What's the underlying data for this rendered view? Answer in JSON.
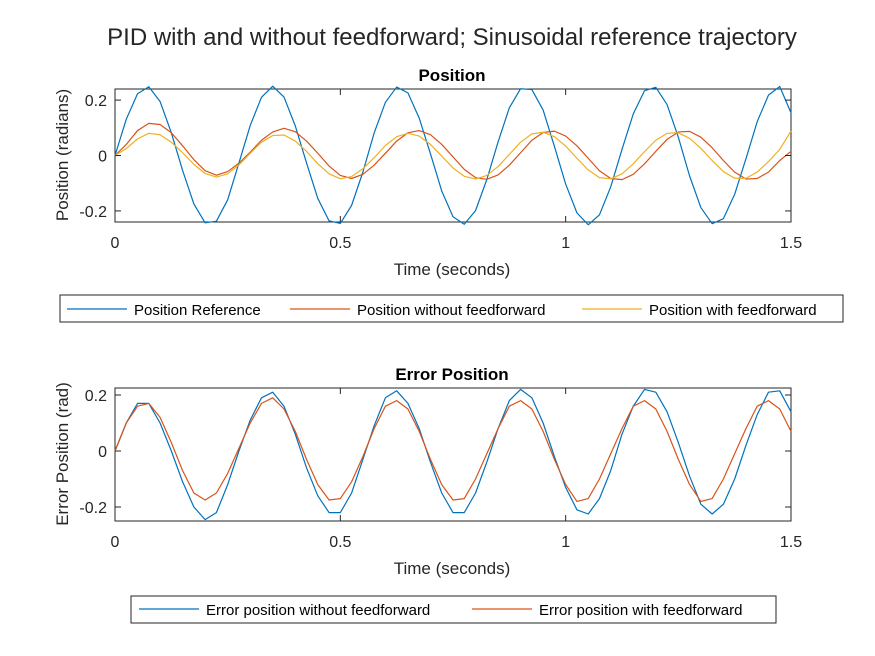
{
  "figure": {
    "title": "PID with and without feedforward; Sinusoidal reference trajectory"
  },
  "chart_data": [
    {
      "type": "line",
      "title": "Position",
      "xlabel": "Time (seconds)",
      "ylabel": "Position (radians)",
      "xlim": [
        0,
        1.5
      ],
      "ylim": [
        -0.24,
        0.24
      ],
      "xticks": [
        0,
        0.5,
        1,
        1.5
      ],
      "xtick_labels": [
        "0",
        "0.5",
        "1",
        "1.5"
      ],
      "yticks": [
        -0.2,
        0,
        0.2
      ],
      "ytick_labels": [
        "-0.2",
        "0",
        "0.2"
      ],
      "grid": false,
      "legend_position": "bottom-outside",
      "x": [
        0,
        0.025,
        0.05,
        0.075,
        0.1,
        0.125,
        0.15,
        0.175,
        0.2,
        0.225,
        0.25,
        0.275,
        0.3,
        0.325,
        0.35,
        0.375,
        0.4,
        0.425,
        0.45,
        0.475,
        0.5,
        0.525,
        0.55,
        0.575,
        0.6,
        0.625,
        0.65,
        0.675,
        0.7,
        0.725,
        0.75,
        0.775,
        0.8,
        0.825,
        0.85,
        0.875,
        0.9,
        0.925,
        0.95,
        0.975,
        1.0,
        1.025,
        1.05,
        1.075,
        1.1,
        1.125,
        1.15,
        1.175,
        1.2,
        1.225,
        1.25,
        1.275,
        1.3,
        1.325,
        1.35,
        1.375,
        1.4,
        1.425,
        1.45,
        1.475,
        1.5
      ],
      "series": [
        {
          "name": "Position Reference",
          "color": "#0072BD",
          "values": [
            0.0,
            0.131,
            0.223,
            0.248,
            0.195,
            0.082,
            -0.054,
            -0.175,
            -0.243,
            -0.237,
            -0.16,
            -0.027,
            0.108,
            0.21,
            0.25,
            0.211,
            0.107,
            -0.027,
            -0.155,
            -0.236,
            -0.245,
            -0.18,
            -0.06,
            0.081,
            0.192,
            0.247,
            0.226,
            0.135,
            0.006,
            -0.128,
            -0.221,
            -0.248,
            -0.199,
            -0.087,
            0.049,
            0.172,
            0.241,
            0.238,
            0.164,
            0.033,
            -0.103,
            -0.207,
            -0.25,
            -0.214,
            -0.113,
            0.022,
            0.15,
            0.234,
            0.246,
            0.184,
            0.066,
            -0.074,
            -0.188,
            -0.246,
            -0.228,
            -0.14,
            -0.012,
            0.122,
            0.218,
            0.249,
            0.154
          ]
        },
        {
          "name": "Position without feedforward",
          "color": "#D95319",
          "values": [
            0.0,
            0.04,
            0.09,
            0.116,
            0.112,
            0.082,
            0.035,
            -0.015,
            -0.055,
            -0.071,
            -0.058,
            -0.028,
            0.012,
            0.055,
            0.085,
            0.098,
            0.086,
            0.052,
            0.008,
            -0.038,
            -0.072,
            -0.083,
            -0.068,
            -0.035,
            0.008,
            0.052,
            0.082,
            0.09,
            0.075,
            0.04,
            -0.005,
            -0.05,
            -0.08,
            -0.086,
            -0.07,
            -0.035,
            0.01,
            0.055,
            0.083,
            0.088,
            0.07,
            0.035,
            -0.01,
            -0.055,
            -0.083,
            -0.087,
            -0.068,
            -0.03,
            0.015,
            0.058,
            0.085,
            0.087,
            0.066,
            0.028,
            -0.018,
            -0.06,
            -0.085,
            -0.083,
            -0.06,
            -0.018,
            0.015
          ]
        },
        {
          "name": "Position with feedforward",
          "color": "#EDB120",
          "values": [
            0.0,
            0.025,
            0.06,
            0.08,
            0.075,
            0.048,
            0.01,
            -0.032,
            -0.065,
            -0.078,
            -0.066,
            -0.034,
            0.008,
            0.048,
            0.072,
            0.074,
            0.052,
            0.015,
            -0.03,
            -0.066,
            -0.084,
            -0.076,
            -0.048,
            -0.008,
            0.036,
            0.068,
            0.08,
            0.07,
            0.04,
            -0.002,
            -0.045,
            -0.075,
            -0.085,
            -0.072,
            -0.04,
            0.004,
            0.048,
            0.078,
            0.084,
            0.068,
            0.034,
            -0.01,
            -0.052,
            -0.08,
            -0.084,
            -0.066,
            -0.03,
            0.014,
            0.055,
            0.08,
            0.082,
            0.062,
            0.026,
            -0.018,
            -0.058,
            -0.082,
            -0.082,
            -0.06,
            -0.022,
            0.022,
            0.088
          ]
        }
      ]
    },
    {
      "type": "line",
      "title": "Error Position",
      "xlabel": "Time (seconds)",
      "ylabel": "Error Position (rad)",
      "xlim": [
        0,
        1.5
      ],
      "ylim": [
        -0.25,
        0.225
      ],
      "xticks": [
        0,
        0.5,
        1,
        1.5
      ],
      "xtick_labels": [
        "0",
        "0.5",
        "1",
        "1.5"
      ],
      "yticks": [
        -0.2,
        0,
        0.2
      ],
      "ytick_labels": [
        "-0.2",
        "0",
        "0.2"
      ],
      "grid": false,
      "legend_position": "bottom-outside",
      "x": [
        0,
        0.025,
        0.05,
        0.075,
        0.1,
        0.125,
        0.15,
        0.175,
        0.2,
        0.225,
        0.25,
        0.275,
        0.3,
        0.325,
        0.35,
        0.375,
        0.4,
        0.425,
        0.45,
        0.475,
        0.5,
        0.525,
        0.55,
        0.575,
        0.6,
        0.625,
        0.65,
        0.675,
        0.7,
        0.725,
        0.75,
        0.775,
        0.8,
        0.825,
        0.85,
        0.875,
        0.9,
        0.925,
        0.95,
        0.975,
        1.0,
        1.025,
        1.05,
        1.075,
        1.1,
        1.125,
        1.15,
        1.175,
        1.2,
        1.225,
        1.25,
        1.275,
        1.3,
        1.325,
        1.35,
        1.375,
        1.4,
        1.425,
        1.45,
        1.475,
        1.5
      ],
      "series": [
        {
          "name": "Error position without feedforward",
          "color": "#0072BD",
          "values": [
            0.0,
            0.1,
            0.17,
            0.17,
            0.1,
            0.0,
            -0.11,
            -0.2,
            -0.245,
            -0.22,
            -0.12,
            0.0,
            0.11,
            0.19,
            0.21,
            0.16,
            0.06,
            -0.06,
            -0.16,
            -0.22,
            -0.22,
            -0.15,
            -0.03,
            0.09,
            0.19,
            0.215,
            0.17,
            0.08,
            -0.04,
            -0.15,
            -0.22,
            -0.22,
            -0.15,
            -0.04,
            0.08,
            0.18,
            0.22,
            0.19,
            0.1,
            -0.02,
            -0.13,
            -0.21,
            -0.225,
            -0.17,
            -0.07,
            0.06,
            0.16,
            0.22,
            0.21,
            0.14,
            0.03,
            -0.09,
            -0.19,
            -0.225,
            -0.19,
            -0.1,
            0.02,
            0.13,
            0.21,
            0.215,
            0.14
          ]
        },
        {
          "name": "Error position with feedforward",
          "color": "#D95319",
          "values": [
            0.0,
            0.1,
            0.16,
            0.17,
            0.12,
            0.03,
            -0.07,
            -0.15,
            -0.175,
            -0.15,
            -0.08,
            0.01,
            0.1,
            0.17,
            0.19,
            0.15,
            0.07,
            -0.03,
            -0.12,
            -0.175,
            -0.17,
            -0.11,
            -0.02,
            0.08,
            0.16,
            0.18,
            0.15,
            0.07,
            -0.03,
            -0.12,
            -0.175,
            -0.17,
            -0.1,
            -0.01,
            0.08,
            0.16,
            0.18,
            0.15,
            0.07,
            -0.03,
            -0.12,
            -0.18,
            -0.17,
            -0.1,
            -0.01,
            0.08,
            0.16,
            0.18,
            0.15,
            0.07,
            -0.03,
            -0.12,
            -0.18,
            -0.17,
            -0.1,
            -0.01,
            0.08,
            0.16,
            0.18,
            0.15,
            0.07
          ]
        }
      ]
    }
  ]
}
